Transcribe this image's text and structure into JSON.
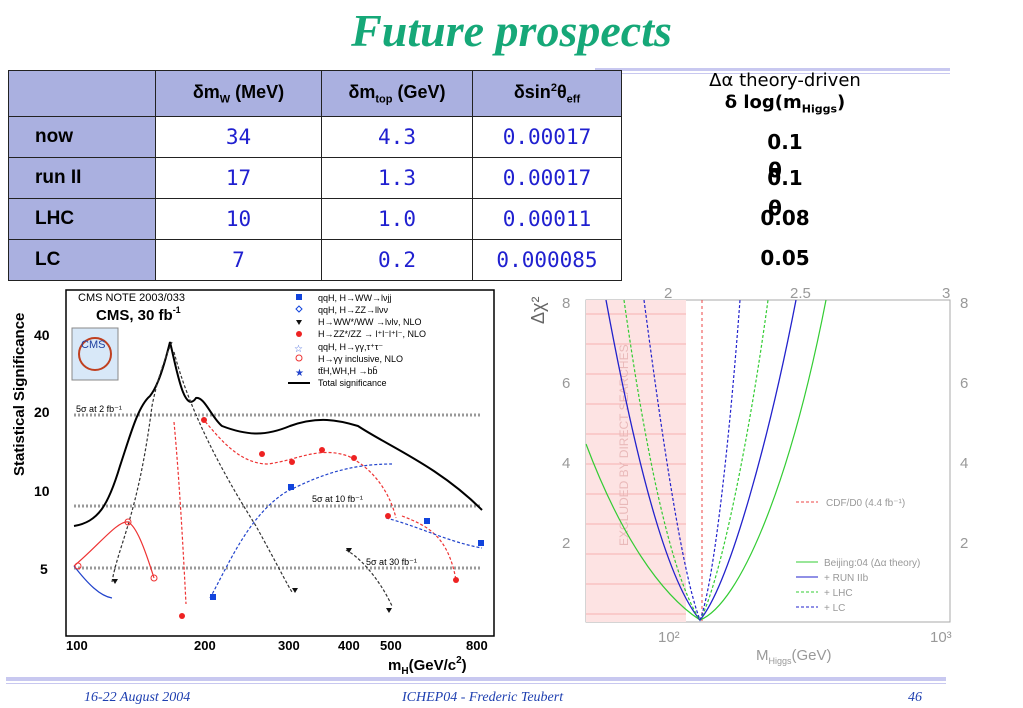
{
  "title": "Future prospects",
  "table": {
    "headers": [
      "δm",
      "W",
      " (MeV)",
      "δm",
      "top",
      " (GeV)",
      "δsin",
      "2",
      "θ",
      "eff"
    ],
    "rows": [
      {
        "label": "now",
        "mw": "34",
        "mtop": "4.3",
        "sin": "0.00017"
      },
      {
        "label": "run II",
        "mw": "17",
        "mtop": "1.3",
        "sin": "0.00017"
      },
      {
        "label": "LHC",
        "mw": "10",
        "mtop": "1.0",
        "sin": "0.00011"
      },
      {
        "label": "LC",
        "mw": "7",
        "mtop": "0.2",
        "sin": "0.000085"
      }
    ]
  },
  "right_column": {
    "head1": "Δα theory-driven",
    "head2_prefix": "δ log(m",
    "head2_sub": "Higgs",
    "head2_suffix": ")",
    "values": [
      "0.1",
      "0.1",
      "0.08",
      "0.05"
    ],
    "overlay_glyph": "θ"
  },
  "cms_plot": {
    "note": "CMS NOTE 2003/033",
    "label": "CMS, 30 fb",
    "label_sup": "-1",
    "logo": "CMS",
    "ylabel": "Statistical Significance",
    "xlabel": "m",
    "xlabel_sub": "H",
    "xlabel_unit": "(GeV/c",
    "xlabel_sup": "2",
    "xlabel_close": ")",
    "yticks": [
      "40",
      "20",
      "10",
      "5"
    ],
    "xticks": [
      "100",
      "200",
      "300",
      "400",
      "500",
      "800"
    ],
    "lines": [
      "5σ at 2 fb⁻¹",
      "5σ at 10 fb⁻¹",
      "5σ at 30 fb⁻¹"
    ],
    "legend": [
      "qqH, H→WW→lνjj",
      "qqH, H→ZZ→llνν",
      "H→WW*/WW →lνlν, NLO",
      "H→ZZ*/ZZ → l⁺l⁻l⁺l⁻, NLO",
      "qqH, H→γγ,τ⁺τ⁻",
      "H→γγ inclusive, NLO",
      "tt̄H,WH,H →bb̄",
      "Total significance"
    ]
  },
  "chi_plot": {
    "ylabel": "Δχ²",
    "yticks": [
      "8",
      "6",
      "4",
      "2"
    ],
    "yticks_right": [
      "8",
      "6",
      "4",
      "2"
    ],
    "top_ticks": [
      "2",
      "2.5",
      "3"
    ],
    "xticks": [
      "10²",
      "10³"
    ],
    "xlabel": "M",
    "xlabel_sub": "Higgs",
    "xlabel_unit": "(GeV)",
    "excluded_text": "EXCLUDED BY DIRECT SEARCHES",
    "legend_cdf": "CDF/D0 (4.4 fb⁻¹)",
    "legend": [
      "Beijing:04 (Δα theory)",
      "+ RUN IIb",
      "+ LHC",
      "+ LC"
    ],
    "colors": {
      "beijing": "#33cc33",
      "run2": "#2222cc",
      "lhc": "#33cc33",
      "lc": "#2222cc",
      "cdf": "#dd3333"
    }
  },
  "footer": {
    "left": "16-22 August 2004",
    "center": "ICHEP04 - Frederic Teubert",
    "right": "46"
  }
}
